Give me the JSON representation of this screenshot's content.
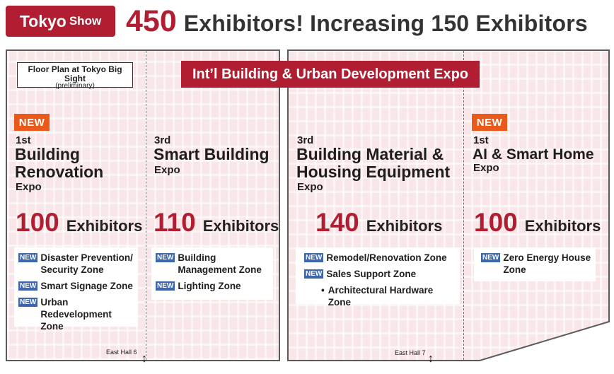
{
  "header": {
    "badge_main": "Tokyo",
    "badge_sub": "Show",
    "count": "450",
    "text": "Exhibitors! Increasing 150 Exhibitors"
  },
  "floor_plan": {
    "line1": "Floor Plan at Tokyo Big Sight",
    "line2": "(preliminary)"
  },
  "banner": "Int’l Building & Urban Development Expo",
  "new_label": "NEW",
  "exhibitors_word": "Exhibitors",
  "expos": [
    {
      "edition": "1st",
      "name_line1": "Building",
      "name_line2": "Renovation",
      "expo_word": "Expo",
      "count": "100",
      "zones": [
        {
          "label": "Disaster Prevention/ Security Zone"
        },
        {
          "label": "Smart Signage Zone"
        },
        {
          "label": "Urban Redevelopment Zone"
        }
      ]
    },
    {
      "edition": "3rd",
      "name_line1": "Smart Building",
      "expo_word": "Expo",
      "count": "110",
      "zones": [
        {
          "label": "Building Management Zone"
        },
        {
          "label": "Lighting Zone"
        }
      ]
    },
    {
      "edition": "3rd",
      "name_line1": "Building Material &",
      "name_line2": "Housing Equipment",
      "expo_word": "Expo",
      "count": "140",
      "zones": [
        {
          "label": "Remodel/Renovation Zone"
        },
        {
          "label": "Sales Support Zone"
        },
        {
          "label": "Architectural Hardware Zone",
          "bullet": "•"
        }
      ]
    },
    {
      "edition": "1st",
      "name_line1": "AI & Smart Home",
      "expo_word": "Expo",
      "count": "100",
      "zones": [
        {
          "label": "Zero Energy House Zone"
        }
      ]
    }
  ],
  "halls": {
    "east6": "East Hall 6",
    "east7": "East Hall 7",
    "arrow": "↕"
  },
  "colors": {
    "brand_red": "#b11e32",
    "new_orange": "#e8591a",
    "zone_new_blue": "#3d66ad",
    "hall_pink": "#f9e6e8"
  }
}
